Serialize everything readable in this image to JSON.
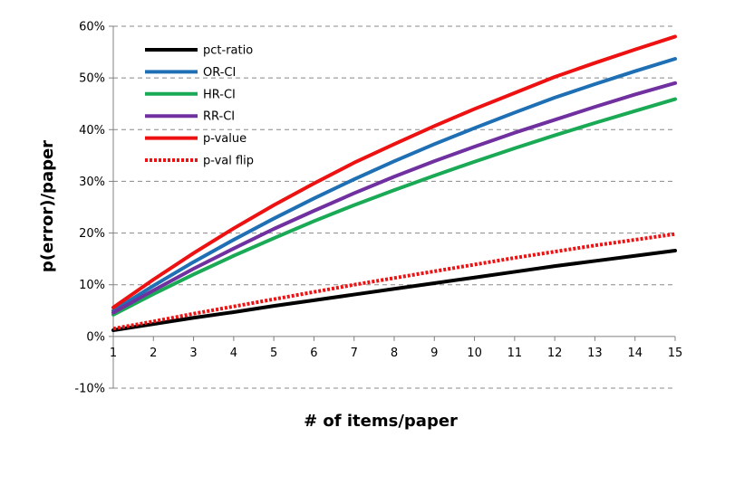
{
  "chart_data": {
    "type": "line",
    "title": "",
    "xlabel": "# of items/paper",
    "ylabel": "p(error)/paper",
    "x": [
      1,
      2,
      3,
      4,
      5,
      6,
      7,
      8,
      9,
      10,
      11,
      12,
      13,
      14,
      15
    ],
    "x_ticks": [
      "1",
      "2",
      "3",
      "4",
      "5",
      "6",
      "7",
      "8",
      "9",
      "10",
      "11",
      "12",
      "13",
      "14",
      "15"
    ],
    "xlim": [
      1,
      15
    ],
    "ylim": [
      -0.1,
      0.6
    ],
    "y_ticks": [
      -0.1,
      0,
      0.1,
      0.2,
      0.3,
      0.4,
      0.5,
      0.6
    ],
    "y_tick_labels": [
      "-10%",
      "0%",
      "10%",
      "20%",
      "30%",
      "40%",
      "50%",
      "60%"
    ],
    "grid": "horizontal dashed",
    "legend_position": "top-left",
    "series": [
      {
        "name": "pct-ratio",
        "color": "#000000",
        "style": "solid",
        "values": [
          0.012,
          0.024,
          0.036,
          0.047,
          0.059,
          0.07,
          0.081,
          0.092,
          0.103,
          0.114,
          0.125,
          0.136,
          0.146,
          0.156,
          0.166
        ]
      },
      {
        "name": "OR-CI",
        "color": "#1f6fb4",
        "style": "solid",
        "values": [
          0.05,
          0.098,
          0.144,
          0.187,
          0.228,
          0.267,
          0.304,
          0.339,
          0.372,
          0.403,
          0.433,
          0.462,
          0.488,
          0.513,
          0.537
        ]
      },
      {
        "name": "HR-CI",
        "color": "#1aaa55",
        "style": "solid",
        "values": [
          0.042,
          0.082,
          0.12,
          0.156,
          0.19,
          0.223,
          0.254,
          0.283,
          0.311,
          0.338,
          0.364,
          0.389,
          0.413,
          0.436,
          0.459
        ]
      },
      {
        "name": "RR-CI",
        "color": "#7030a0",
        "style": "solid",
        "values": [
          0.046,
          0.089,
          0.131,
          0.17,
          0.208,
          0.243,
          0.277,
          0.309,
          0.339,
          0.367,
          0.394,
          0.419,
          0.444,
          0.468,
          0.49
        ]
      },
      {
        "name": "p-value",
        "color": "#ee1111",
        "style": "solid",
        "values": [
          0.056,
          0.11,
          0.161,
          0.209,
          0.254,
          0.296,
          0.336,
          0.372,
          0.407,
          0.44,
          0.471,
          0.502,
          0.529,
          0.555,
          0.58
        ]
      },
      {
        "name": "p-val flip",
        "color": "#ee1111",
        "style": "dotted",
        "values": [
          0.015,
          0.029,
          0.044,
          0.058,
          0.072,
          0.086,
          0.1,
          0.113,
          0.126,
          0.139,
          0.152,
          0.164,
          0.176,
          0.187,
          0.198
        ]
      }
    ]
  }
}
